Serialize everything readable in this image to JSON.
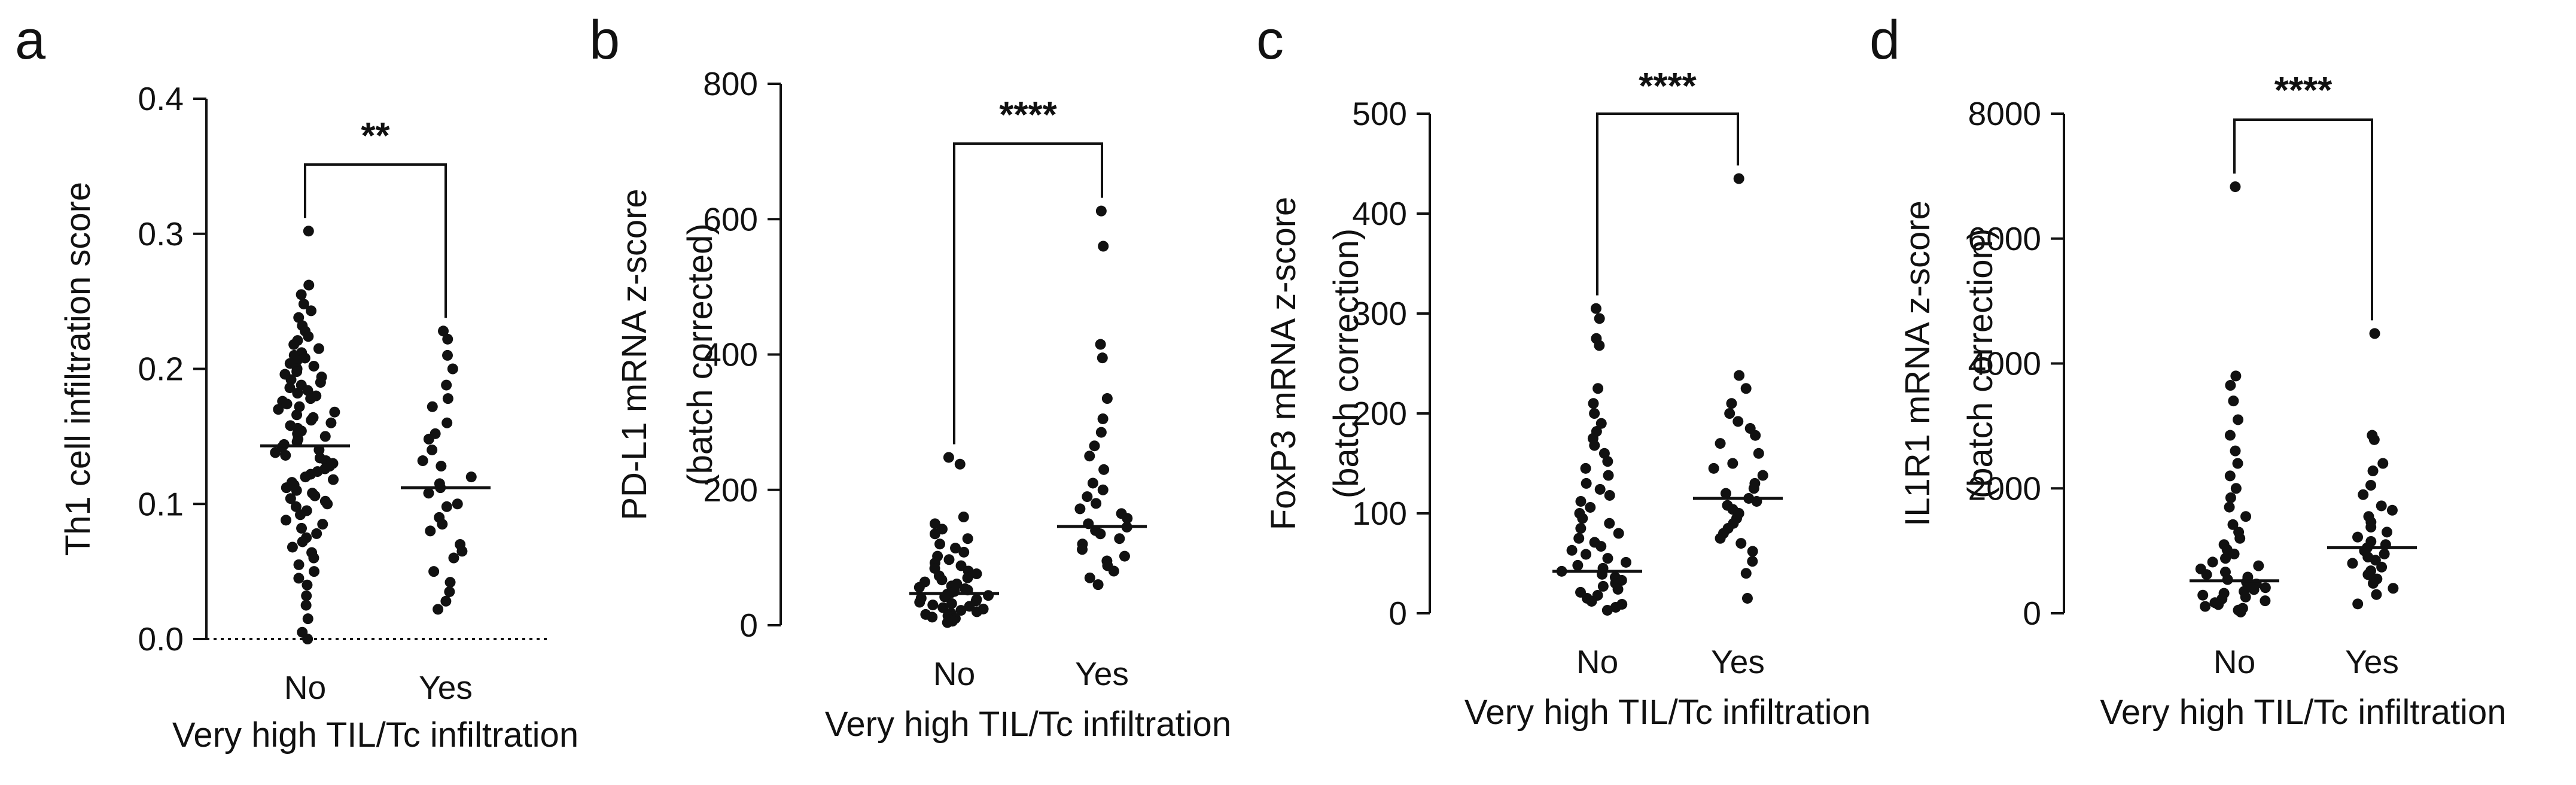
{
  "chart_data": [
    {
      "type": "scatter",
      "panel": "a",
      "ylabel": [
        "Th1 cell infiltration score"
      ],
      "xlabel": "Very high TIL/Tc infiltration",
      "categories": [
        "No",
        "Yes"
      ],
      "ylim": [
        0,
        0.4
      ],
      "yticks": [
        0,
        0.1,
        0.2,
        0.3,
        0.4
      ],
      "ytick_labels": [
        "0.0",
        "0.1",
        "0.2",
        "0.3",
        "0.4"
      ],
      "dotted_zero_line": true,
      "significance": "**",
      "series": [
        {
          "name": "No",
          "median": 0.143,
          "values": [
            0.302,
            0.262,
            0.255,
            0.248,
            0.243,
            0.238,
            0.232,
            0.228,
            0.224,
            0.221,
            0.218,
            0.215,
            0.212,
            0.21,
            0.208,
            0.206,
            0.204,
            0.202,
            0.2,
            0.198,
            0.196,
            0.194,
            0.192,
            0.19,
            0.188,
            0.186,
            0.184,
            0.182,
            0.18,
            0.178,
            0.176,
            0.174,
            0.172,
            0.17,
            0.168,
            0.166,
            0.164,
            0.162,
            0.16,
            0.158,
            0.156,
            0.154,
            0.152,
            0.15,
            0.148,
            0.146,
            0.144,
            0.142,
            0.14,
            0.138,
            0.136,
            0.134,
            0.132,
            0.13,
            0.128,
            0.126,
            0.124,
            0.122,
            0.12,
            0.118,
            0.116,
            0.114,
            0.112,
            0.11,
            0.108,
            0.106,
            0.104,
            0.102,
            0.1,
            0.098,
            0.095,
            0.092,
            0.088,
            0.085,
            0.082,
            0.078,
            0.075,
            0.072,
            0.068,
            0.064,
            0.06,
            0.055,
            0.05,
            0.045,
            0.04,
            0.032,
            0.025,
            0.015,
            0.005,
            0.0
          ]
        },
        {
          "name": "Yes",
          "median": 0.112,
          "values": [
            0.228,
            0.222,
            0.21,
            0.2,
            0.188,
            0.178,
            0.172,
            0.16,
            0.152,
            0.148,
            0.14,
            0.132,
            0.128,
            0.12,
            0.115,
            0.112,
            0.108,
            0.1,
            0.098,
            0.09,
            0.085,
            0.08,
            0.07,
            0.065,
            0.06,
            0.05,
            0.042,
            0.035,
            0.028,
            0.022
          ]
        }
      ]
    },
    {
      "type": "scatter",
      "panel": "b",
      "ylabel": [
        "PD-L1 mRNA z-score",
        "(batch corrected)"
      ],
      "xlabel": "Very high TIL/Tc infiltration",
      "categories": [
        "No",
        "Yes"
      ],
      "ylim": [
        0,
        800
      ],
      "yticks": [
        0,
        200,
        400,
        600,
        800
      ],
      "ytick_labels": [
        "0",
        "200",
        "400",
        "600",
        "800"
      ],
      "significance": "****",
      "series": [
        {
          "name": "No",
          "median": 47,
          "values": [
            248,
            238,
            160,
            150,
            142,
            135,
            128,
            120,
            114,
            108,
            102,
            97,
            92,
            88,
            84,
            80,
            76,
            73,
            70,
            67,
            64,
            61,
            58,
            56,
            54,
            52,
            50,
            48,
            46,
            44,
            42,
            40,
            38,
            36,
            34,
            32,
            30,
            28,
            26,
            24,
            22,
            20,
            18,
            16,
            14,
            12,
            10,
            8,
            6,
            4
          ]
        },
        {
          "name": "Yes",
          "median": 146,
          "values": [
            612,
            560,
            415,
            395,
            335,
            305,
            285,
            265,
            250,
            230,
            210,
            200,
            190,
            180,
            172,
            165,
            158,
            150,
            145,
            140,
            135,
            128,
            120,
            112,
            102,
            95,
            88,
            80,
            70,
            60
          ]
        }
      ]
    },
    {
      "type": "scatter",
      "panel": "c",
      "ylabel": [
        "FoxP3 mRNA z-score",
        "(batch correction)"
      ],
      "xlabel": "Very high TIL/Tc infiltration",
      "categories": [
        "No",
        "Yes"
      ],
      "ylim": [
        0,
        500
      ],
      "yticks": [
        0,
        100,
        200,
        300,
        400,
        500
      ],
      "ytick_labels": [
        "0",
        "100",
        "200",
        "300",
        "400",
        "500"
      ],
      "significance": "****",
      "series": [
        {
          "name": "No",
          "median": 42,
          "values": [
            305,
            295,
            275,
            268,
            225,
            210,
            200,
            190,
            182,
            175,
            168,
            160,
            152,
            145,
            138,
            130,
            124,
            118,
            112,
            106,
            100,
            95,
            90,
            85,
            80,
            75,
            71,
            67,
            63,
            59,
            55,
            51,
            48,
            45,
            42,
            39,
            36,
            33,
            30,
            27,
            24,
            21,
            18,
            15,
            12,
            9,
            6,
            3
          ]
        },
        {
          "name": "Yes",
          "median": 115,
          "values": [
            435,
            238,
            225,
            210,
            200,
            192,
            185,
            178,
            170,
            160,
            150,
            145,
            138,
            130,
            125,
            120,
            115,
            112,
            108,
            104,
            100,
            95,
            90,
            85,
            80,
            75,
            70,
            62,
            52,
            40,
            15
          ]
        }
      ]
    },
    {
      "type": "scatter",
      "panel": "d",
      "ylabel": [
        "IL1R1 mRNA z-score",
        "(batch correction)"
      ],
      "xlabel": "Very high TIL/Tc infiltration",
      "categories": [
        "No",
        "Yes"
      ],
      "ylim": [
        0,
        8000
      ],
      "yticks": [
        0,
        2000,
        4000,
        6000,
        8000
      ],
      "ytick_labels": [
        "0",
        "2000",
        "4000",
        "6000",
        "8000"
      ],
      "significance": "****",
      "series": [
        {
          "name": "No",
          "median": 520,
          "values": [
            6830,
            3800,
            3650,
            3400,
            3100,
            2850,
            2600,
            2400,
            2200,
            2000,
            1850,
            1700,
            1550,
            1420,
            1300,
            1200,
            1100,
            1020,
            950,
            880,
            820,
            760,
            710,
            660,
            620,
            580,
            540,
            500,
            470,
            440,
            410,
            380,
            350,
            320,
            290,
            260,
            230,
            200,
            170,
            140,
            110,
            80,
            50,
            20
          ]
        },
        {
          "name": "Yes",
          "median": 1050,
          "values": [
            4480,
            2850,
            2780,
            2400,
            2280,
            2050,
            1900,
            1720,
            1650,
            1550,
            1460,
            1380,
            1300,
            1220,
            1150,
            1100,
            1050,
            1000,
            950,
            900,
            850,
            800,
            740,
            680,
            620,
            550,
            480,
            400,
            300,
            150
          ]
        }
      ]
    }
  ]
}
